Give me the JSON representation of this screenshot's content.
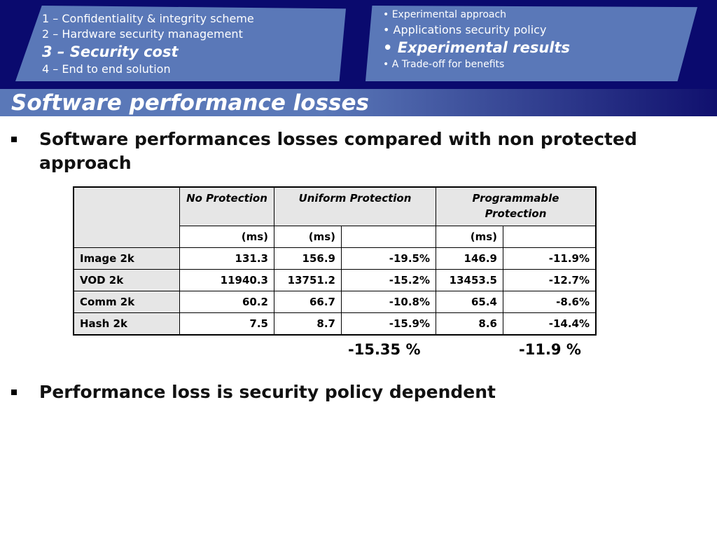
{
  "agenda": {
    "items": [
      "1 – Confidentiality & integrity scheme",
      "2 – Hardware security management",
      "3 – Security cost",
      "4 – End to end solution"
    ]
  },
  "section_bullets": [
    "• Experimental approach",
    "• Applications security policy",
    "• Experimental results",
    "• A Trade-off for benefits"
  ],
  "slide": {
    "title": "Software performance losses",
    "point1": "Software performances losses compared with non protected approach",
    "point2": "Performance loss is security policy dependent"
  },
  "table": {
    "headers": {
      "no_protection": "No Protection",
      "uniform": "Uniform Protection",
      "programmable": "Programmable Protection"
    },
    "units": [
      "(ms)",
      "(ms)",
      "",
      "(ms)",
      ""
    ],
    "rows": [
      {
        "label": "Image 2k",
        "no_prot": "131.3",
        "uniform": "156.9",
        "uniform_loss": "-19.5%",
        "prog": "146.9",
        "prog_loss": "-11.9%"
      },
      {
        "label": "VOD 2k",
        "no_prot": "11940.3",
        "uniform": "13751.2",
        "uniform_loss": "-15.2%",
        "prog": "13453.5",
        "prog_loss": "-12.7%"
      },
      {
        "label": "Comm 2k",
        "no_prot": "60.2",
        "uniform": "66.7",
        "uniform_loss": "-10.8%",
        "prog": "65.4",
        "prog_loss": "-8.6%"
      },
      {
        "label": "Hash 2k",
        "no_prot": "7.5",
        "uniform": "8.7",
        "uniform_loss": "-15.9%",
        "prog": "8.6",
        "prog_loss": "-14.4%"
      }
    ],
    "averages": {
      "uniform": "-15.35 %",
      "programmable": "-11.9 %"
    }
  },
  "colors": {
    "header_bg": "#0a0a6e",
    "panel": "#5a78b8",
    "table_header_bg": "#e6e6e6"
  }
}
